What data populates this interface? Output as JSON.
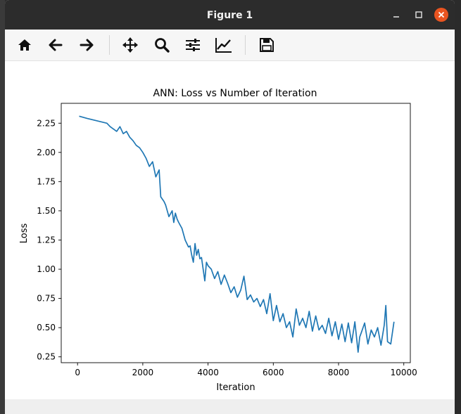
{
  "window": {
    "title": "Figure 1"
  },
  "toolbar": {
    "buttons": [
      {
        "name": "home-icon"
      },
      {
        "name": "back-arrow-icon"
      },
      {
        "name": "forward-arrow-icon"
      },
      {
        "name": "pan-move-icon"
      },
      {
        "name": "zoom-magnifier-icon"
      },
      {
        "name": "configure-subplots-icon"
      },
      {
        "name": "edit-axis-icon"
      },
      {
        "name": "save-floppy-icon"
      }
    ]
  },
  "colors": {
    "line": "#1f77b4",
    "close_button": "#e95420",
    "titlebar": "#2c2c2c"
  },
  "chart_data": {
    "type": "line",
    "title": "ANN: Loss vs Number of Iteration",
    "xlabel": "Iteration",
    "ylabel": "Loss",
    "xlim": [
      -500,
      10200
    ],
    "ylim": [
      0.2,
      2.42
    ],
    "xticks": [
      0,
      2000,
      4000,
      6000,
      8000,
      10000
    ],
    "xtick_labels": [
      "0",
      "2000",
      "4000",
      "6000",
      "8000",
      "10000"
    ],
    "yticks": [
      0.25,
      0.5,
      0.75,
      1.0,
      1.25,
      1.5,
      1.75,
      2.0,
      2.25
    ],
    "ytick_labels": [
      "0.25",
      "0.50",
      "0.75",
      "1.00",
      "1.25",
      "1.50",
      "1.75",
      "2.00",
      "2.25"
    ],
    "grid": false,
    "series": [
      {
        "color": "#1f77b4",
        "x": [
          50,
          300,
          600,
          900,
          1000,
          1100,
          1200,
          1300,
          1400,
          1500,
          1600,
          1700,
          1800,
          1900,
          2000,
          2100,
          2200,
          2300,
          2400,
          2500,
          2550,
          2650,
          2700,
          2800,
          2900,
          2950,
          3000,
          3050,
          3100,
          3200,
          3300,
          3400,
          3450,
          3500,
          3550,
          3600,
          3650,
          3700,
          3750,
          3800,
          3900,
          3950,
          4000,
          4100,
          4200,
          4300,
          4400,
          4500,
          4600,
          4700,
          4800,
          4900,
          5000,
          5100,
          5200,
          5300,
          5400,
          5500,
          5600,
          5700,
          5800,
          5900,
          6000,
          6100,
          6200,
          6300,
          6400,
          6500,
          6600,
          6700,
          6800,
          6900,
          7000,
          7100,
          7200,
          7300,
          7400,
          7500,
          7600,
          7700,
          7800,
          7900,
          8000,
          8100,
          8200,
          8300,
          8400,
          8500,
          8600,
          8650,
          8700,
          8800,
          8900,
          9000,
          9100,
          9200,
          9300,
          9400,
          9450,
          9500,
          9600,
          9700
        ],
        "y": [
          2.31,
          2.29,
          2.27,
          2.25,
          2.22,
          2.2,
          2.18,
          2.22,
          2.16,
          2.18,
          2.13,
          2.1,
          2.06,
          2.04,
          2.0,
          1.95,
          1.88,
          1.92,
          1.79,
          1.85,
          1.62,
          1.58,
          1.55,
          1.45,
          1.5,
          1.4,
          1.48,
          1.43,
          1.4,
          1.35,
          1.25,
          1.19,
          1.2,
          1.12,
          1.06,
          1.22,
          1.12,
          1.17,
          1.09,
          1.1,
          0.9,
          1.06,
          1.03,
          1.0,
          0.92,
          0.98,
          0.87,
          0.95,
          0.88,
          0.8,
          0.85,
          0.76,
          0.82,
          0.94,
          0.74,
          0.78,
          0.72,
          0.75,
          0.68,
          0.74,
          0.62,
          0.79,
          0.56,
          0.69,
          0.55,
          0.62,
          0.5,
          0.55,
          0.42,
          0.66,
          0.52,
          0.58,
          0.5,
          0.64,
          0.47,
          0.6,
          0.48,
          0.52,
          0.45,
          0.58,
          0.43,
          0.55,
          0.4,
          0.53,
          0.38,
          0.54,
          0.37,
          0.55,
          0.29,
          0.42,
          0.46,
          0.54,
          0.36,
          0.48,
          0.42,
          0.5,
          0.35,
          0.52,
          0.69,
          0.38,
          0.36,
          0.55
        ]
      }
    ]
  }
}
